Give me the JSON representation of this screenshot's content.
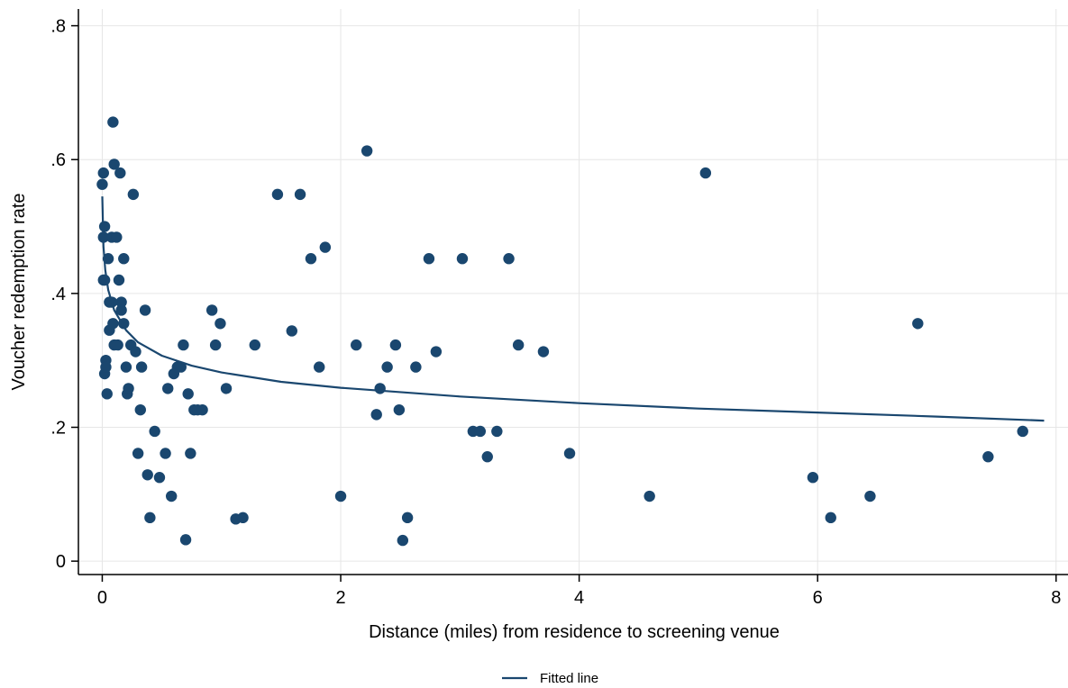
{
  "chart_data": {
    "type": "scatter",
    "xlabel": "Distance (miles) from residence to screening venue",
    "ylabel": "Voucher redemption rate",
    "xlim": [
      -0.2,
      8.1
    ],
    "ylim": [
      -0.02,
      0.825
    ],
    "x_ticks": [
      0,
      2,
      4,
      6,
      8
    ],
    "x_tick_labels": [
      "0",
      "2",
      "4",
      "6",
      "8"
    ],
    "y_ticks": [
      0,
      0.2,
      0.4,
      0.6,
      0.8
    ],
    "y_tick_labels": [
      "0",
      ".2",
      ".4",
      ".6",
      ".8"
    ],
    "grid": true,
    "legend_position": "bottom-center",
    "colors": {
      "marker": "#1a476f",
      "fitted_line": "#1a476f",
      "grid": "#e6e6e6",
      "axis": "#000000"
    },
    "fitted_line": {
      "name": "Fitted line",
      "x": [
        0.0,
        0.01,
        0.025,
        0.05,
        0.1,
        0.2,
        0.3,
        0.5,
        0.75,
        1.0,
        1.5,
        2.0,
        3.0,
        4.0,
        5.0,
        6.0,
        7.0,
        7.9
      ],
      "y": [
        0.545,
        0.47,
        0.435,
        0.405,
        0.375,
        0.345,
        0.327,
        0.307,
        0.292,
        0.282,
        0.268,
        0.259,
        0.246,
        0.236,
        0.228,
        0.222,
        0.216,
        0.21
      ]
    },
    "series": [
      {
        "name": "",
        "x": [
          0.0,
          0.01,
          0.02,
          0.01,
          0.02,
          0.03,
          0.01,
          0.02,
          0.04,
          0.03,
          0.05,
          0.06,
          0.06,
          0.08,
          0.09,
          0.1,
          0.12,
          0.13,
          0.14,
          0.16,
          0.16,
          0.09,
          0.08,
          0.1,
          0.15,
          0.18,
          0.18,
          0.2,
          0.21,
          0.22,
          0.24,
          0.26,
          0.28,
          0.3,
          0.32,
          0.33,
          0.36,
          0.38,
          0.4,
          0.44,
          0.48,
          0.53,
          0.55,
          0.58,
          0.6,
          0.63,
          0.66,
          0.68,
          0.7,
          0.72,
          0.74,
          0.77,
          0.8,
          0.84,
          0.92,
          0.95,
          0.99,
          1.04,
          1.12,
          1.18,
          1.28,
          1.47,
          1.59,
          1.66,
          1.75,
          1.82,
          1.87,
          2.0,
          2.13,
          2.22,
          2.3,
          2.33,
          2.39,
          2.46,
          2.49,
          2.52,
          2.56,
          2.63,
          2.74,
          2.8,
          3.02,
          3.11,
          3.17,
          3.23,
          3.31,
          3.41,
          3.49,
          3.7,
          3.92,
          4.59,
          5.06,
          5.96,
          6.11,
          6.44,
          6.84,
          7.43,
          7.72
        ],
        "y": [
          0.563,
          0.58,
          0.5,
          0.484,
          0.42,
          0.3,
          0.42,
          0.28,
          0.25,
          0.29,
          0.452,
          0.387,
          0.345,
          0.484,
          0.355,
          0.323,
          0.484,
          0.323,
          0.42,
          0.387,
          0.375,
          0.656,
          0.387,
          0.593,
          0.58,
          0.355,
          0.452,
          0.29,
          0.25,
          0.258,
          0.323,
          0.548,
          0.313,
          0.161,
          0.226,
          0.29,
          0.375,
          0.129,
          0.065,
          0.194,
          0.125,
          0.161,
          0.258,
          0.097,
          0.28,
          0.29,
          0.29,
          0.323,
          0.032,
          0.25,
          0.161,
          0.226,
          0.226,
          0.226,
          0.375,
          0.323,
          0.355,
          0.258,
          0.063,
          0.065,
          0.323,
          0.548,
          0.344,
          0.548,
          0.452,
          0.29,
          0.469,
          0.097,
          0.323,
          0.613,
          0.219,
          0.258,
          0.29,
          0.323,
          0.226,
          0.031,
          0.065,
          0.29,
          0.452,
          0.313,
          0.452,
          0.194,
          0.194,
          0.156,
          0.194,
          0.452,
          0.323,
          0.313,
          0.161,
          0.097,
          0.58,
          0.125,
          0.065,
          0.097,
          0.355,
          0.156,
          0.194
        ]
      }
    ]
  }
}
